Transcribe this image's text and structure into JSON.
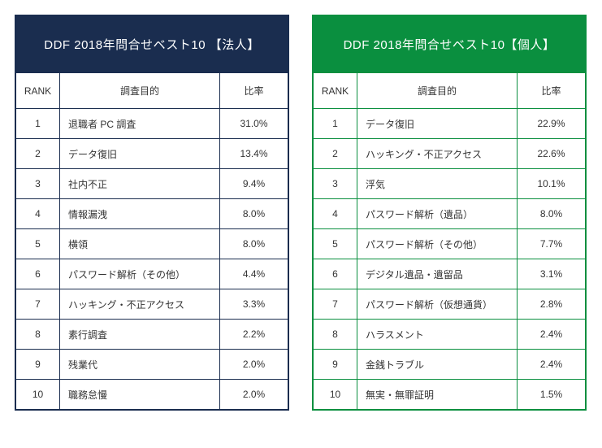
{
  "left": {
    "title": "DDF 2018年問合せベスト10 【法人】",
    "header_bg": "#1a2d4f",
    "border_color": "#1a2d4f",
    "columns": {
      "rank": "RANK",
      "purpose": "調査目的",
      "ratio": "比率"
    },
    "rows": [
      {
        "rank": "1",
        "purpose": "退職者 PC 調査",
        "ratio": "31.0%"
      },
      {
        "rank": "2",
        "purpose": "データ復旧",
        "ratio": "13.4%"
      },
      {
        "rank": "3",
        "purpose": "社内不正",
        "ratio": "9.4%"
      },
      {
        "rank": "4",
        "purpose": "情報漏洩",
        "ratio": "8.0%"
      },
      {
        "rank": "5",
        "purpose": "横領",
        "ratio": "8.0%"
      },
      {
        "rank": "6",
        "purpose": "パスワード解析（その他）",
        "ratio": "4.4%"
      },
      {
        "rank": "7",
        "purpose": "ハッキング・不正アクセス",
        "ratio": "3.3%"
      },
      {
        "rank": "8",
        "purpose": "素行調査",
        "ratio": "2.2%"
      },
      {
        "rank": "9",
        "purpose": "残業代",
        "ratio": "2.0%"
      },
      {
        "rank": "10",
        "purpose": "職務怠慢",
        "ratio": "2.0%"
      }
    ]
  },
  "right": {
    "title": "DDF 2018年問合せベスト10【個人】",
    "header_bg": "#0a8f3f",
    "border_color": "#0a8f3f",
    "columns": {
      "rank": "RANK",
      "purpose": "調査目的",
      "ratio": "比率"
    },
    "rows": [
      {
        "rank": "1",
        "purpose": "データ復旧",
        "ratio": "22.9%"
      },
      {
        "rank": "2",
        "purpose": "ハッキング・不正アクセス",
        "ratio": "22.6%"
      },
      {
        "rank": "3",
        "purpose": "浮気",
        "ratio": "10.1%"
      },
      {
        "rank": "4",
        "purpose": "パスワード解析（遺品）",
        "ratio": "8.0%"
      },
      {
        "rank": "5",
        "purpose": "パスワード解析（その他）",
        "ratio": "7.7%"
      },
      {
        "rank": "6",
        "purpose": "デジタル遺品・遺留品",
        "ratio": "3.1%"
      },
      {
        "rank": "7",
        "purpose": "パスワード解析（仮想通貨）",
        "ratio": "2.8%"
      },
      {
        "rank": "8",
        "purpose": "ハラスメント",
        "ratio": "2.4%"
      },
      {
        "rank": "9",
        "purpose": "金銭トラブル",
        "ratio": "2.4%"
      },
      {
        "rank": "10",
        "purpose": "無実・無罪証明",
        "ratio": "1.5%"
      }
    ]
  }
}
